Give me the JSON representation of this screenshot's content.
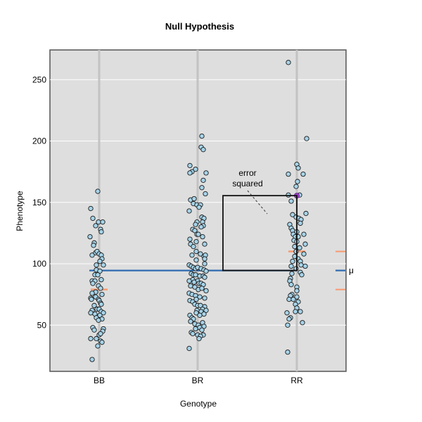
{
  "chart_data": {
    "type": "scatter",
    "title": "Null Hypothesis",
    "xlabel": "Genotype",
    "ylabel": "Phenotype",
    "categories": [
      "BB",
      "BR",
      "RR"
    ],
    "yticks": [
      50,
      100,
      150,
      200,
      250
    ],
    "ylim": [
      12,
      274
    ],
    "grid": true,
    "grand_mean": {
      "label": "μ",
      "value": 94.5,
      "color": "#2e6ab0"
    },
    "group_means": [
      {
        "category": "BB",
        "value": 79,
        "color": "#f79a70"
      },
      {
        "category": "RR",
        "value": 110,
        "color": "#f79a70"
      }
    ],
    "annotation": {
      "text_line1": "error",
      "text_line2": "squared",
      "highlighted_point": {
        "category": "RR",
        "value": 155.5,
        "color": "#9b3fc8"
      },
      "square": {
        "from_value": 94.5,
        "to_value": 155.5
      }
    },
    "point_style": {
      "fill": "#a6d3e8",
      "stroke": "#1a1a1a"
    },
    "series": [
      {
        "name": "BB",
        "points": [
          {
            "dx": -2,
            "y": 159
          },
          {
            "dx": -12,
            "y": 145
          },
          {
            "dx": -9,
            "y": 137
          },
          {
            "dx": -1,
            "y": 134
          },
          {
            "dx": 5,
            "y": 134
          },
          {
            "dx": -5,
            "y": 131
          },
          {
            "dx": 2,
            "y": 128
          },
          {
            "dx": 3,
            "y": 126
          },
          {
            "dx": -13,
            "y": 122
          },
          {
            "dx": -7,
            "y": 117
          },
          {
            "dx": -8,
            "y": 115
          },
          {
            "dx": -10,
            "y": 107
          },
          {
            "dx": -5,
            "y": 109
          },
          {
            "dx": -3,
            "y": 110
          },
          {
            "dx": 0,
            "y": 108
          },
          {
            "dx": 3,
            "y": 107
          },
          {
            "dx": 4,
            "y": 104
          },
          {
            "dx": 1,
            "y": 102
          },
          {
            "dx": -4,
            "y": 99
          },
          {
            "dx": 6,
            "y": 99
          },
          {
            "dx": -4,
            "y": 95
          },
          {
            "dx": 1,
            "y": 94
          },
          {
            "dx": -6,
            "y": 91
          },
          {
            "dx": -2,
            "y": 91
          },
          {
            "dx": -10,
            "y": 86
          },
          {
            "dx": -6,
            "y": 86
          },
          {
            "dx": -9,
            "y": 84
          },
          {
            "dx": 3,
            "y": 87
          },
          {
            "dx": -1,
            "y": 82
          },
          {
            "dx": 2,
            "y": 80
          },
          {
            "dx": -5,
            "y": 77
          },
          {
            "dx": -10,
            "y": 76
          },
          {
            "dx": -5,
            "y": 73
          },
          {
            "dx": 4,
            "y": 75
          },
          {
            "dx": -12,
            "y": 72
          },
          {
            "dx": -11,
            "y": 71
          },
          {
            "dx": -1,
            "y": 71
          },
          {
            "dx": 0,
            "y": 70
          },
          {
            "dx": 2,
            "y": 68
          },
          {
            "dx": 3,
            "y": 67
          },
          {
            "dx": -7,
            "y": 66
          },
          {
            "dx": -3,
            "y": 63
          },
          {
            "dx": -10,
            "y": 62
          },
          {
            "dx": -12,
            "y": 60
          },
          {
            "dx": -6,
            "y": 59
          },
          {
            "dx": 0,
            "y": 63
          },
          {
            "dx": 3,
            "y": 61
          },
          {
            "dx": 6,
            "y": 60
          },
          {
            "dx": 1,
            "y": 58
          },
          {
            "dx": -4,
            "y": 56
          },
          {
            "dx": 4,
            "y": 55
          },
          {
            "dx": -1,
            "y": 54
          },
          {
            "dx": -9,
            "y": 48
          },
          {
            "dx": -7,
            "y": 46
          },
          {
            "dx": 6,
            "y": 47
          },
          {
            "dx": 5,
            "y": 45
          },
          {
            "dx": 0,
            "y": 42
          },
          {
            "dx": 2,
            "y": 43
          },
          {
            "dx": -12,
            "y": 39
          },
          {
            "dx": -4,
            "y": 39
          },
          {
            "dx": 2,
            "y": 37
          },
          {
            "dx": 4,
            "y": 36
          },
          {
            "dx": -2,
            "y": 33
          },
          {
            "dx": -10,
            "y": 22
          }
        ]
      },
      {
        "name": "BR",
        "points": [
          {
            "dx": 6,
            "y": 204
          },
          {
            "dx": 5,
            "y": 195
          },
          {
            "dx": 8,
            "y": 193
          },
          {
            "dx": -11,
            "y": 180
          },
          {
            "dx": -3,
            "y": 177
          },
          {
            "dx": -8,
            "y": 175
          },
          {
            "dx": -11,
            "y": 174
          },
          {
            "dx": 12,
            "y": 174
          },
          {
            "dx": 8,
            "y": 168
          },
          {
            "dx": 6,
            "y": 162
          },
          {
            "dx": 11,
            "y": 157
          },
          {
            "dx": -10,
            "y": 152
          },
          {
            "dx": -5,
            "y": 153
          },
          {
            "dx": -6,
            "y": 149
          },
          {
            "dx": -1,
            "y": 148
          },
          {
            "dx": 4,
            "y": 148
          },
          {
            "dx": 2,
            "y": 146
          },
          {
            "dx": -12,
            "y": 143
          },
          {
            "dx": 6,
            "y": 138
          },
          {
            "dx": 9,
            "y": 137
          },
          {
            "dx": -1,
            "y": 134
          },
          {
            "dx": 7,
            "y": 134
          },
          {
            "dx": 8,
            "y": 131
          },
          {
            "dx": 5,
            "y": 130
          },
          {
            "dx": -3,
            "y": 132
          },
          {
            "dx": -7,
            "y": 128
          },
          {
            "dx": -4,
            "y": 127
          },
          {
            "dx": -1,
            "y": 124
          },
          {
            "dx": 1,
            "y": 124
          },
          {
            "dx": 7,
            "y": 122
          },
          {
            "dx": -11,
            "y": 120
          },
          {
            "dx": -2,
            "y": 118
          },
          {
            "dx": -10,
            "y": 116
          },
          {
            "dx": 10,
            "y": 116
          },
          {
            "dx": -6,
            "y": 114
          },
          {
            "dx": -2,
            "y": 110
          },
          {
            "dx": -8,
            "y": 107
          },
          {
            "dx": 4,
            "y": 108
          },
          {
            "dx": 9,
            "y": 106
          },
          {
            "dx": 11,
            "y": 107
          },
          {
            "dx": -2,
            "y": 103
          },
          {
            "dx": 10,
            "y": 104
          },
          {
            "dx": 10,
            "y": 100
          },
          {
            "dx": -12,
            "y": 99
          },
          {
            "dx": -9,
            "y": 98
          },
          {
            "dx": -6,
            "y": 97
          },
          {
            "dx": -3,
            "y": 96
          },
          {
            "dx": 0,
            "y": 97
          },
          {
            "dx": 5,
            "y": 96
          },
          {
            "dx": 9,
            "y": 95
          },
          {
            "dx": 12,
            "y": 94
          },
          {
            "dx": -9,
            "y": 92
          },
          {
            "dx": -6,
            "y": 91
          },
          {
            "dx": -3,
            "y": 91
          },
          {
            "dx": 3,
            "y": 90
          },
          {
            "dx": 8,
            "y": 90
          },
          {
            "dx": 10,
            "y": 89
          },
          {
            "dx": -7,
            "y": 87
          },
          {
            "dx": 0,
            "y": 86
          },
          {
            "dx": -12,
            "y": 86
          },
          {
            "dx": -5,
            "y": 85
          },
          {
            "dx": 2,
            "y": 84
          },
          {
            "dx": 5,
            "y": 84
          },
          {
            "dx": 8,
            "y": 83
          },
          {
            "dx": -10,
            "y": 82
          },
          {
            "dx": -4,
            "y": 81
          },
          {
            "dx": 1,
            "y": 79
          },
          {
            "dx": 6,
            "y": 80
          },
          {
            "dx": 12,
            "y": 78
          },
          {
            "dx": -12,
            "y": 76
          },
          {
            "dx": -8,
            "y": 75
          },
          {
            "dx": -3,
            "y": 74
          },
          {
            "dx": 3,
            "y": 73
          },
          {
            "dx": 10,
            "y": 72
          },
          {
            "dx": -2,
            "y": 71
          },
          {
            "dx": -11,
            "y": 70
          },
          {
            "dx": -7,
            "y": 69
          },
          {
            "dx": -4,
            "y": 67
          },
          {
            "dx": 0,
            "y": 66
          },
          {
            "dx": 4,
            "y": 66
          },
          {
            "dx": 10,
            "y": 65
          },
          {
            "dx": 7,
            "y": 63
          },
          {
            "dx": -1,
            "y": 62
          },
          {
            "dx": 12,
            "y": 62
          },
          {
            "dx": 5,
            "y": 61
          },
          {
            "dx": 9,
            "y": 59
          },
          {
            "dx": -11,
            "y": 58
          },
          {
            "dx": -2,
            "y": 60
          },
          {
            "dx": 3,
            "y": 58
          },
          {
            "dx": -8,
            "y": 56
          },
          {
            "dx": -6,
            "y": 55
          },
          {
            "dx": -10,
            "y": 53
          },
          {
            "dx": 7,
            "y": 52
          },
          {
            "dx": -4,
            "y": 51
          },
          {
            "dx": 1,
            "y": 50
          },
          {
            "dx": 9,
            "y": 49
          },
          {
            "dx": 3,
            "y": 48
          },
          {
            "dx": -3,
            "y": 47
          },
          {
            "dx": 6,
            "y": 46
          },
          {
            "dx": -9,
            "y": 44
          },
          {
            "dx": -7,
            "y": 43
          },
          {
            "dx": 0,
            "y": 42
          },
          {
            "dx": 8,
            "y": 42
          },
          {
            "dx": 4,
            "y": 41
          },
          {
            "dx": 2,
            "y": 39
          },
          {
            "dx": -12,
            "y": 31
          }
        ]
      },
      {
        "name": "RR",
        "points": [
          {
            "dx": -12,
            "y": 264
          },
          {
            "dx": 14,
            "y": 202
          },
          {
            "dx": 0,
            "y": 181
          },
          {
            "dx": 2,
            "y": 178
          },
          {
            "dx": -12,
            "y": 173
          },
          {
            "dx": 9,
            "y": 173
          },
          {
            "dx": 1,
            "y": 167
          },
          {
            "dx": -1,
            "y": 163
          },
          {
            "dx": -12,
            "y": 156
          },
          {
            "dx": 4,
            "y": 156
          },
          {
            "dx": -8,
            "y": 151
          },
          {
            "dx": 13,
            "y": 141
          },
          {
            "dx": -6,
            "y": 140
          },
          {
            "dx": -1,
            "y": 138
          },
          {
            "dx": 3,
            "y": 137
          },
          {
            "dx": 6,
            "y": 136
          },
          {
            "dx": -10,
            "y": 132
          },
          {
            "dx": 5,
            "y": 133
          },
          {
            "dx": -8,
            "y": 129
          },
          {
            "dx": -6,
            "y": 127
          },
          {
            "dx": 0,
            "y": 126
          },
          {
            "dx": -5,
            "y": 124
          },
          {
            "dx": -2,
            "y": 122
          },
          {
            "dx": 2,
            "y": 122
          },
          {
            "dx": 10,
            "y": 124
          },
          {
            "dx": -4,
            "y": 119
          },
          {
            "dx": 0,
            "y": 118
          },
          {
            "dx": 12,
            "y": 116
          },
          {
            "dx": -3,
            "y": 114
          },
          {
            "dx": 4,
            "y": 113
          },
          {
            "dx": -1,
            "y": 110
          },
          {
            "dx": 10,
            "y": 108
          },
          {
            "dx": -3,
            "y": 106
          },
          {
            "dx": 2,
            "y": 104
          },
          {
            "dx": 5,
            "y": 102
          },
          {
            "dx": -6,
            "y": 102
          },
          {
            "dx": 6,
            "y": 99
          },
          {
            "dx": -8,
            "y": 98
          },
          {
            "dx": 12,
            "y": 98
          },
          {
            "dx": -1,
            "y": 96
          },
          {
            "dx": 5,
            "y": 93
          },
          {
            "dx": 7,
            "y": 91
          },
          {
            "dx": -7,
            "y": 92
          },
          {
            "dx": -9,
            "y": 88
          },
          {
            "dx": -10,
            "y": 86
          },
          {
            "dx": -8,
            "y": 83
          },
          {
            "dx": 0,
            "y": 81
          },
          {
            "dx": 0,
            "y": 78
          },
          {
            "dx": -7,
            "y": 75
          },
          {
            "dx": -9,
            "y": 74
          },
          {
            "dx": 0,
            "y": 73
          },
          {
            "dx": -11,
            "y": 71
          },
          {
            "dx": -5,
            "y": 71
          },
          {
            "dx": 2,
            "y": 69
          },
          {
            "dx": -2,
            "y": 67
          },
          {
            "dx": 0,
            "y": 64
          },
          {
            "dx": -2,
            "y": 61
          },
          {
            "dx": 5,
            "y": 61
          },
          {
            "dx": -14,
            "y": 60
          },
          {
            "dx": -9,
            "y": 56
          },
          {
            "dx": -11,
            "y": 55
          },
          {
            "dx": 8,
            "y": 52
          },
          {
            "dx": -13,
            "y": 50
          },
          {
            "dx": -13,
            "y": 28
          }
        ]
      }
    ]
  }
}
